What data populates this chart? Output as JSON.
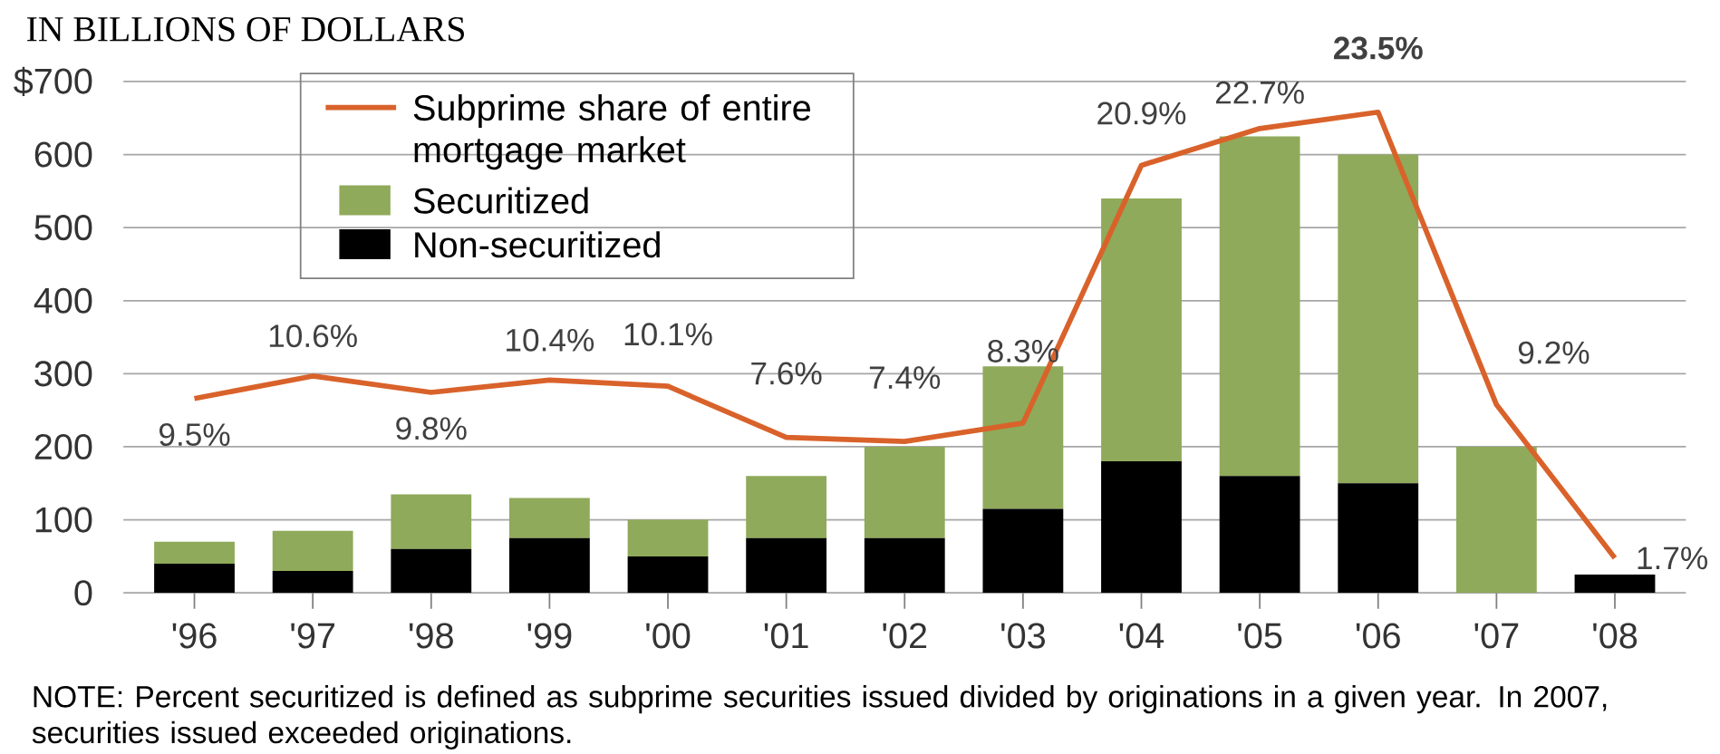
{
  "chart_data": {
    "type": "bar",
    "stacked": true,
    "ylabel": "IN BILLIONS OF DOLLARS",
    "categories": [
      "'96",
      "'97",
      "'98",
      "'99",
      "'00",
      "'01",
      "'02",
      "'03",
      "'04",
      "'05",
      "'06",
      "'07",
      "'08"
    ],
    "series": [
      {
        "name": "Non-securitized",
        "color": "#000000",
        "values": [
          40,
          30,
          60,
          75,
          50,
          75,
          75,
          115,
          180,
          160,
          150,
          0,
          25
        ]
      },
      {
        "name": "Securitized",
        "color": "#8faa5a",
        "values": [
          30,
          55,
          75,
          55,
          50,
          85,
          125,
          195,
          360,
          465,
          450,
          200,
          0
        ]
      },
      {
        "name": "Subprime share of entire mortgage market",
        "type": "line",
        "axis": "y2",
        "color": "#d9622b",
        "values": [
          9.5,
          10.6,
          9.8,
          10.4,
          10.1,
          7.6,
          7.4,
          8.3,
          20.9,
          22.7,
          23.5,
          9.2,
          1.7
        ],
        "value_labels": [
          "9.5%",
          "10.6%",
          "9.8%",
          "10.4%",
          "10.1%",
          "7.6%",
          "7.4%",
          "8.3%",
          "20.9%",
          "22.7%",
          "**23.5%**",
          "9.2%",
          "1.7%"
        ]
      }
    ],
    "ylim": [
      0,
      700
    ],
    "yticks": [
      0,
      100,
      200,
      300,
      400,
      500,
      {
        "value": 700,
        "label": "$700"
      },
      600
    ],
    "y2lim": [
      0,
      25
    ],
    "grid": "y",
    "legend": "top left",
    "annotations": [
      "NOTE: Percent securitized is defined as subprime securities issued divided by originations in a given year. In 2007, securities issued exceeded originations."
    ]
  }
}
